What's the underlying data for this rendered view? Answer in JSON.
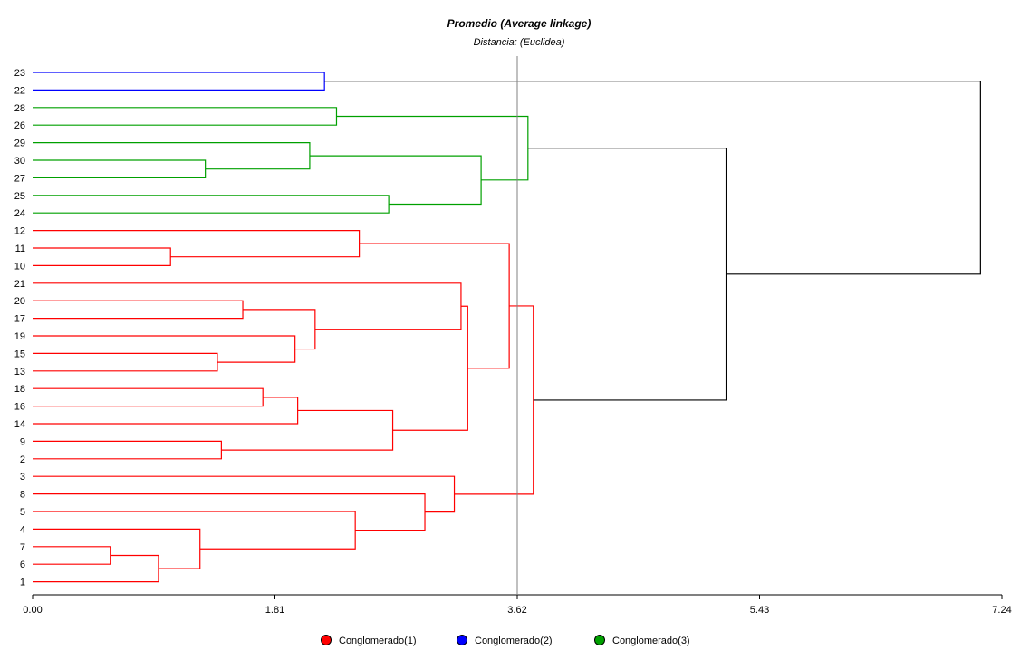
{
  "chart_data": {
    "type": "dendrogram",
    "title": "Promedio (Average linkage)",
    "subtitle": "Distancia: (Euclidea)",
    "xlim": [
      0,
      7.24
    ],
    "x_ticks": [
      "0.00",
      "1.81",
      "3.62",
      "5.43",
      "7.24"
    ],
    "cut_line": 3.62,
    "leaves": [
      "23",
      "22",
      "28",
      "26",
      "29",
      "30",
      "27",
      "25",
      "24",
      "12",
      "11",
      "10",
      "21",
      "20",
      "17",
      "19",
      "15",
      "13",
      "18",
      "16",
      "14",
      "9",
      "2",
      "3",
      "8",
      "5",
      "4",
      "7",
      "6",
      "1"
    ],
    "clusters": [
      {
        "name": "Conglomerado(1)",
        "color": "#ff0000"
      },
      {
        "name": "Conglomerado(2)",
        "color": "#0000ff"
      },
      {
        "name": "Conglomerado(3)",
        "color": "#00a000"
      }
    ],
    "root_color": "#000000",
    "merges": [
      {
        "id": "A",
        "a": "22",
        "b": "23",
        "height": 2.18,
        "cluster": 1
      },
      {
        "id": "B",
        "a": "28",
        "b": "26",
        "height": 2.27,
        "cluster": 2
      },
      {
        "id": "C",
        "a": "30",
        "b": "27",
        "height": 1.29,
        "cluster": 2
      },
      {
        "id": "D",
        "a": "29",
        "b": "C",
        "height": 2.07,
        "cluster": 2
      },
      {
        "id": "E",
        "a": "25",
        "b": "24",
        "height": 2.66,
        "cluster": 2
      },
      {
        "id": "F",
        "a": "D",
        "b": "E",
        "height": 3.35,
        "cluster": 2
      },
      {
        "id": "G",
        "a": "B",
        "b": "F",
        "height": 3.7,
        "cluster": 2
      },
      {
        "id": "H",
        "a": "11",
        "b": "10",
        "height": 1.03,
        "cluster": 0
      },
      {
        "id": "I",
        "a": "12",
        "b": "H",
        "height": 2.44,
        "cluster": 0
      },
      {
        "id": "J",
        "a": "20",
        "b": "17",
        "height": 1.57,
        "cluster": 0
      },
      {
        "id": "K",
        "a": "15",
        "b": "13",
        "height": 1.38,
        "cluster": 0
      },
      {
        "id": "L",
        "a": "19",
        "b": "K",
        "height": 1.96,
        "cluster": 0
      },
      {
        "id": "M",
        "a": "J",
        "b": "L",
        "height": 2.11,
        "cluster": 0
      },
      {
        "id": "N",
        "a": "21",
        "b": "M",
        "height": 3.2,
        "cluster": 0
      },
      {
        "id": "O",
        "a": "18",
        "b": "16",
        "height": 1.72,
        "cluster": 0
      },
      {
        "id": "P",
        "a": "O",
        "b": "14",
        "height": 1.98,
        "cluster": 0
      },
      {
        "id": "Q",
        "a": "9",
        "b": "2",
        "height": 1.41,
        "cluster": 0
      },
      {
        "id": "R",
        "a": "P",
        "b": "Q",
        "height": 2.69,
        "cluster": 0
      },
      {
        "id": "S",
        "a": "N",
        "b": "R",
        "height": 3.25,
        "cluster": 0
      },
      {
        "id": "T",
        "a": "I",
        "b": "S",
        "height": 3.56,
        "cluster": 0
      },
      {
        "id": "U",
        "a": "7",
        "b": "6",
        "height": 0.58,
        "cluster": 0
      },
      {
        "id": "V",
        "a": "U",
        "b": "1",
        "height": 0.94,
        "cluster": 0
      },
      {
        "id": "W",
        "a": "4",
        "b": "V",
        "height": 1.25,
        "cluster": 0
      },
      {
        "id": "X",
        "a": "5",
        "b": "W",
        "height": 2.41,
        "cluster": 0
      },
      {
        "id": "Y",
        "a": "8",
        "b": "X",
        "height": 2.93,
        "cluster": 0
      },
      {
        "id": "Z",
        "a": "3",
        "b": "Y",
        "height": 3.15,
        "cluster": 0
      },
      {
        "id": "AA",
        "a": "T",
        "b": "Z",
        "height": 3.74,
        "cluster": 0
      },
      {
        "id": "AB",
        "a": "G",
        "b": "AA",
        "height": 5.18,
        "cluster": -1
      },
      {
        "id": "AC",
        "a": "A",
        "b": "AB",
        "height": 7.08,
        "cluster": -1
      }
    ]
  }
}
